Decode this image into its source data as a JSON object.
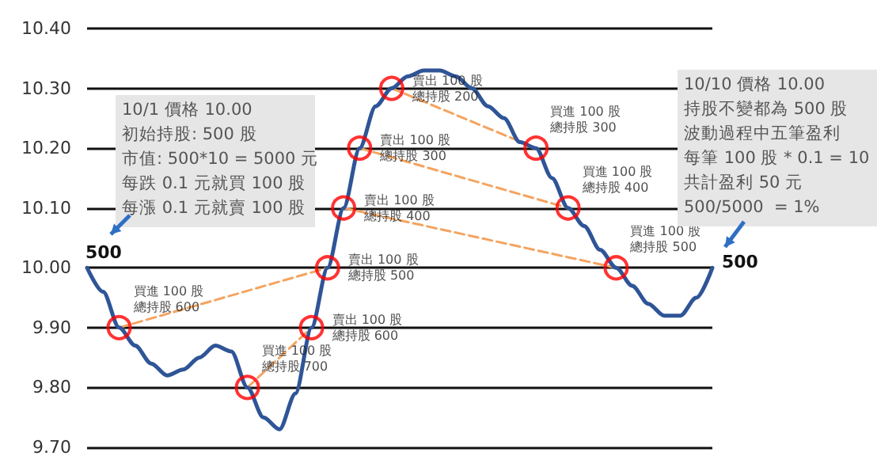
{
  "chart_data": {
    "type": "line",
    "categories": [
      null,
      null,
      null,
      null,
      null,
      null,
      null,
      null,
      null,
      null,
      null,
      null,
      null,
      null,
      null,
      null,
      null,
      null,
      null,
      null,
      null,
      null,
      null,
      null,
      null,
      null,
      null,
      null,
      null,
      null,
      null,
      null,
      null,
      null,
      null,
      null,
      null,
      null,
      null,
      null
    ],
    "series": [
      {
        "color": "#2f5597",
        "marker": "none",
        "line_style": "solid",
        "values": [
          10.0,
          9.96,
          9.9,
          9.87,
          9.84,
          9.82,
          9.83,
          9.85,
          9.87,
          9.86,
          9.8,
          9.75,
          9.73,
          9.79,
          9.9,
          10.0,
          10.1,
          10.2,
          10.27,
          10.3,
          10.32,
          10.33,
          10.33,
          10.32,
          10.3,
          10.27,
          10.25,
          10.21,
          10.2,
          10.15,
          10.1,
          10.07,
          10.03,
          10.0,
          9.97,
          9.94,
          9.92,
          9.92,
          9.95,
          10.0
        ]
      },
      {
        "type": "line",
        "color": "#f4a460",
        "marker": "none",
        "line_style": "dashed",
        "values": [
          null,
          null,
          9.9,
          null,
          null,
          null,
          null,
          null,
          null,
          null,
          null,
          null,
          null,
          null,
          null,
          10.0,
          null,
          null,
          null,
          null,
          null,
          null,
          null,
          null,
          null,
          null,
          null,
          null,
          null,
          null,
          null,
          null,
          null,
          null,
          null,
          null,
          null,
          null,
          null,
          null
        ]
      },
      {
        "type": "line",
        "color": "#f4a460",
        "marker": "none",
        "line_style": "dashed",
        "values": [
          null,
          null,
          null,
          null,
          null,
          null,
          null,
          null,
          null,
          null,
          9.8,
          null,
          null,
          null,
          9.9,
          null,
          null,
          null,
          null,
          null,
          null,
          null,
          null,
          null,
          null,
          null,
          null,
          null,
          null,
          null,
          null,
          null,
          null,
          null,
          null,
          null,
          null,
          null,
          null,
          null
        ]
      },
      {
        "type": "line",
        "color": "#f4a460",
        "marker": "none",
        "line_style": "dashed",
        "values": [
          null,
          null,
          null,
          null,
          null,
          null,
          null,
          null,
          null,
          null,
          null,
          null,
          null,
          null,
          null,
          null,
          null,
          null,
          null,
          10.3,
          null,
          null,
          null,
          null,
          null,
          null,
          null,
          null,
          10.2,
          null,
          null,
          null,
          null,
          null,
          null,
          null,
          null,
          null,
          null,
          null
        ]
      },
      {
        "type": "line",
        "color": "#f4a460",
        "marker": "none",
        "line_style": "dashed",
        "values": [
          null,
          null,
          null,
          null,
          null,
          null,
          null,
          null,
          null,
          null,
          null,
          null,
          null,
          null,
          null,
          null,
          null,
          10.2,
          null,
          null,
          null,
          null,
          null,
          null,
          null,
          null,
          null,
          null,
          null,
          null,
          10.1,
          null,
          null,
          null,
          null,
          null,
          null,
          null,
          null,
          null
        ]
      },
      {
        "type": "line",
        "color": "#f4a460",
        "marker": "none",
        "line_style": "dashed",
        "values": [
          null,
          null,
          null,
          null,
          null,
          null,
          null,
          null,
          null,
          null,
          null,
          null,
          null,
          null,
          null,
          null,
          10.1,
          null,
          null,
          null,
          null,
          null,
          null,
          null,
          null,
          null,
          null,
          null,
          null,
          null,
          null,
          null,
          null,
          10.0,
          null,
          null,
          null,
          null,
          null,
          null
        ]
      },
      {
        "type": "scatter",
        "color": "#ff0000",
        "marker": "circle",
        "values": [
          null,
          null,
          9.9,
          null,
          null,
          null,
          null,
          null,
          null,
          null,
          9.8,
          null,
          null,
          null,
          9.9,
          10.0,
          10.1,
          10.2,
          null,
          10.3,
          null,
          null,
          null,
          null,
          null,
          null,
          null,
          null,
          10.2,
          null,
          10.1,
          null,
          null,
          10.0,
          null,
          null,
          null,
          null,
          null,
          null
        ],
        "value_labels": [
          null,
          null,
          "買進 100 股總持股 600",
          null,
          null,
          null,
          null,
          null,
          null,
          null,
          "買進 100 股總持股 700",
          null,
          null,
          null,
          "賣出 100 股總持股 600",
          "賣出 100 股總持股 500",
          "賣出 100 股總持股 400",
          "賣出 100 股總持股 300",
          null,
          "賣出 100 股總持股 200",
          null,
          null,
          null,
          null,
          null,
          null,
          null,
          null,
          "買進 100 股總持股 300",
          null,
          "買進 100 股總持股 400",
          null,
          null,
          "買進 100 股總持股 500",
          null,
          null,
          null,
          null,
          null,
          null
        ]
      }
    ],
    "ylim": [
      9.7,
      10.4
    ],
    "yticks": [
      {
        "value": 9.7,
        "label": "9.70"
      },
      {
        "value": 9.8,
        "label": "9.80"
      },
      {
        "value": 9.9,
        "label": "9.90"
      },
      {
        "value": 10.0,
        "label": "10.00"
      },
      {
        "value": 10.1,
        "label": "10.10"
      },
      {
        "value": 10.2,
        "label": "10.20"
      },
      {
        "value": 10.3,
        "label": "10.30"
      },
      {
        "value": 10.4,
        "label": "10.40"
      }
    ],
    "grid": "y",
    "tick_labels": "y",
    "annotations": [
      "10/1 價格 10.00",
      "初始持股: 500 股",
      "市值: 500*10 = 5000 元",
      "每跌 0.1 元就買 100 股",
      "每漲 0.1 元就賣 100 股",
      "10/10 價格 10.00",
      "持股不變都為 500 股",
      "波動過程中五筆盈利",
      "每筆 100 股 * 0.1 = 10",
      "共計盈利 50 元",
      "500/5000  = 1%",
      "500",
      "500"
    ]
  }
}
